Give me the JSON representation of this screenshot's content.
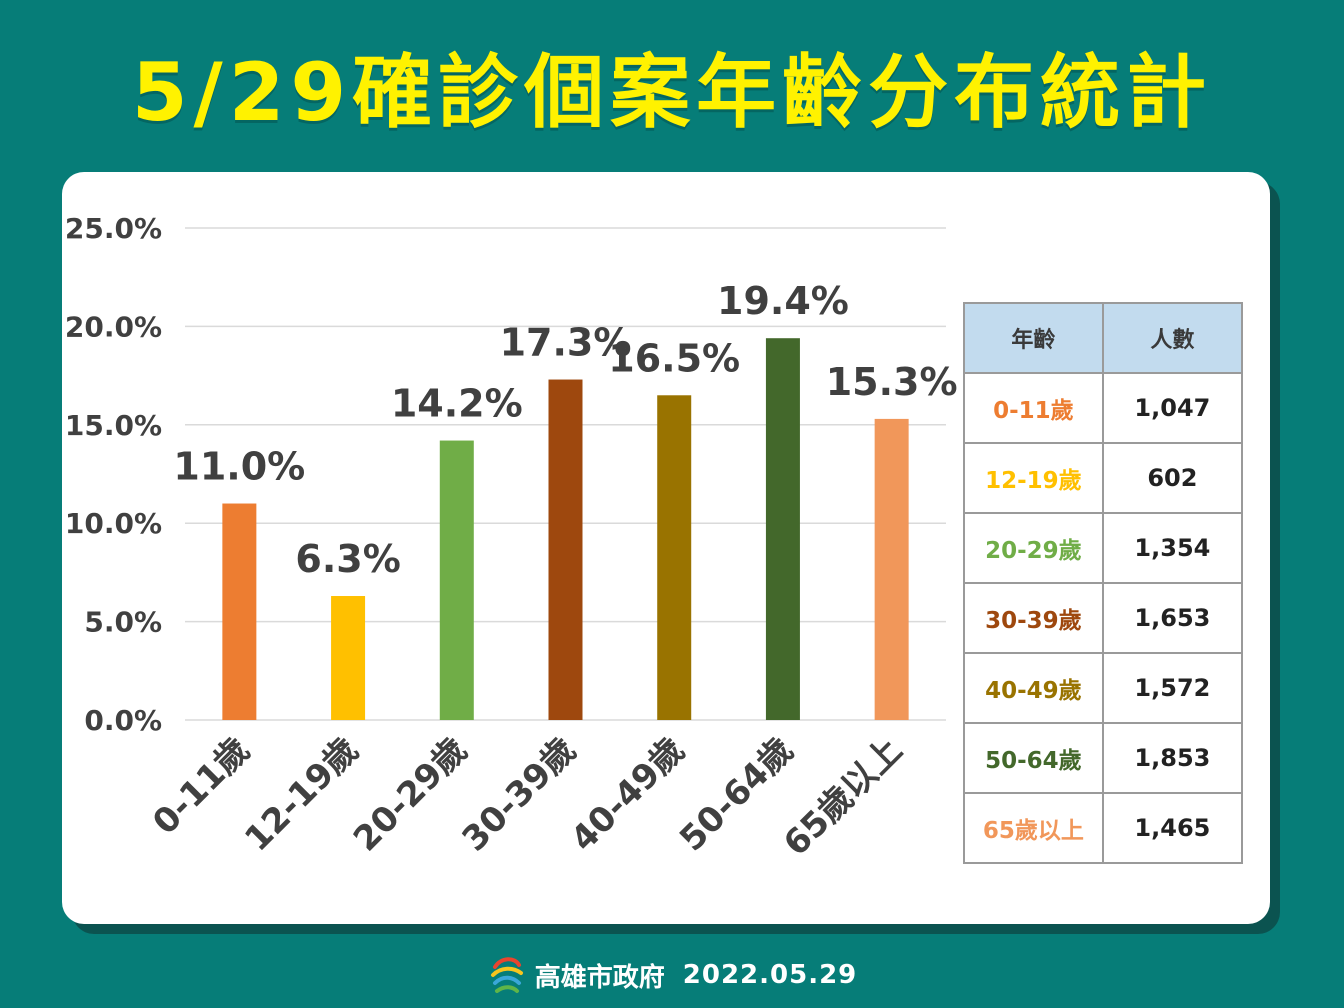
{
  "title": "5/29確診個案年齡分布統計",
  "chart_data": {
    "type": "bar",
    "categories": [
      "0-11歲",
      "12-19歲",
      "20-29歲",
      "30-39歲",
      "40-49歲",
      "50-64歲",
      "65歲以上"
    ],
    "values": [
      11.0,
      6.3,
      14.2,
      17.3,
      16.5,
      19.4,
      15.3
    ],
    "value_labels": [
      "11.0%",
      "6.3%",
      "14.2%",
      "17.3%",
      "16.5%",
      "19.4%",
      "15.3%"
    ],
    "colors": [
      "#ed7d31",
      "#ffc000",
      "#70ad47",
      "#9e480e",
      "#997300",
      "#43682b",
      "#f1975a"
    ],
    "yticks": [
      0,
      5,
      10,
      15,
      20,
      25
    ],
    "ytick_labels": [
      "0.0%",
      "5.0%",
      "10.0%",
      "15.0%",
      "20.0%",
      "25.0%"
    ],
    "ylim": [
      0,
      25
    ],
    "grid": true,
    "legend": "none"
  },
  "table": {
    "headers": [
      "年齡",
      "人數"
    ],
    "rows": [
      {
        "age": "0-11歲",
        "count": "1,047",
        "color": "#ed7d31"
      },
      {
        "age": "12-19歲",
        "count": "602",
        "color": "#ffc000"
      },
      {
        "age": "20-29歲",
        "count": "1,354",
        "color": "#70ad47"
      },
      {
        "age": "30-39歲",
        "count": "1,653",
        "color": "#9e480e"
      },
      {
        "age": "40-49歲",
        "count": "1,572",
        "color": "#997300"
      },
      {
        "age": "50-64歲",
        "count": "1,853",
        "color": "#43682b"
      },
      {
        "age": "65歲以上",
        "count": "1,465",
        "color": "#f1975a"
      }
    ]
  },
  "footer": {
    "org": "高雄市政府",
    "date": "2022.05.29",
    "logo_icon": "kaohsiung-city-logo-icon"
  }
}
